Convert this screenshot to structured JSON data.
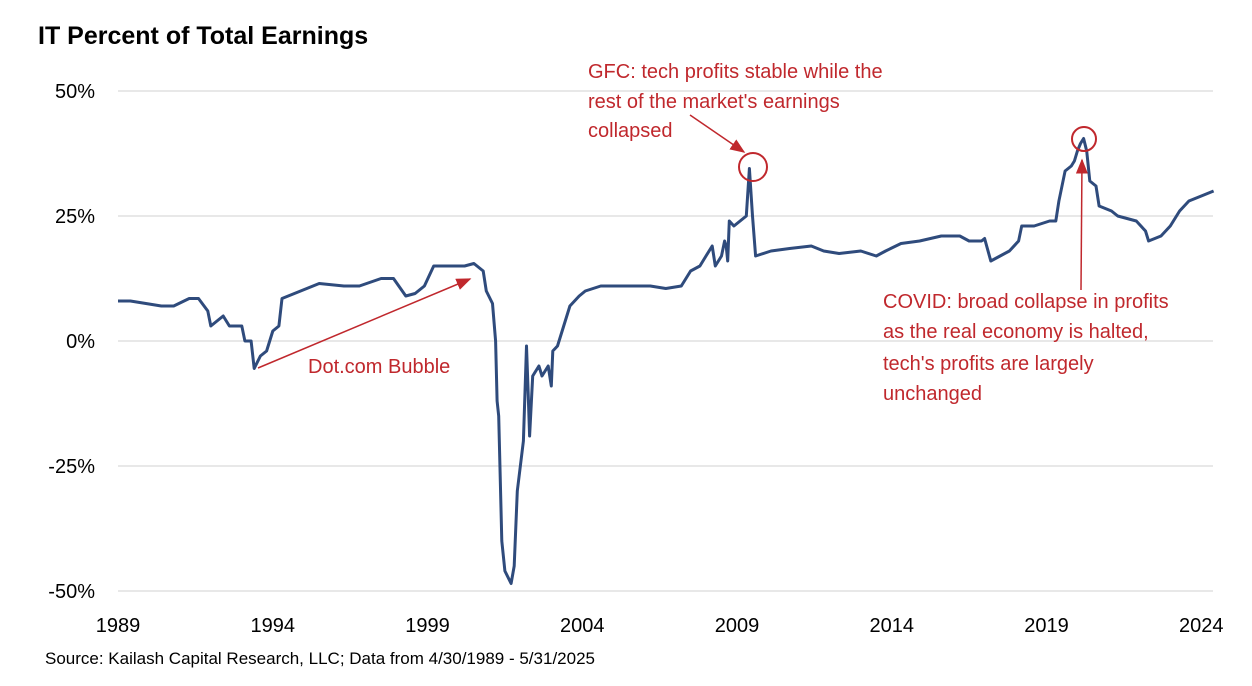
{
  "chart_data": {
    "type": "line",
    "title": "IT Percent of Total Earnings",
    "source": "Source: Kailash Capital Research, LLC; Data from 4/30/1989 - 5/31/2025",
    "annotations": [
      {
        "text": [
          "Dot.com Bubble"
        ]
      },
      {
        "text": [
          "GFC: tech profits stable while the",
          "rest of the market's earnings",
          "collapsed"
        ]
      },
      {
        "text": [
          "COVID: broad collapse in profits",
          "as the real economy is halted,",
          "tech's profits are largely",
          "unchanged"
        ]
      }
    ],
    "x": [
      1989.0,
      1989.4,
      1989.9,
      1990.4,
      1990.8,
      1991.3,
      1991.6,
      1991.9,
      1992.0,
      1992.4,
      1992.6,
      1993.0,
      1993.1,
      1993.3,
      1993.4,
      1993.6,
      1993.8,
      1994.0,
      1994.2,
      1994.3,
      1994.9,
      1995.5,
      1996.3,
      1996.8,
      1997.5,
      1997.9,
      1998.3,
      1998.6,
      1998.9,
      1999.2,
      1999.7,
      2000.2,
      2000.5,
      2000.8,
      2000.9,
      2001.1,
      2001.2,
      2001.25,
      2001.3,
      2001.4,
      2001.5,
      2001.7,
      2001.8,
      2001.9,
      2002.1,
      2002.2,
      2002.25,
      2002.3,
      2002.4,
      2002.6,
      2002.7,
      2002.9,
      2003.0,
      2003.05,
      2003.2,
      2003.4,
      2003.6,
      2003.9,
      2004.1,
      2004.6,
      2005.5,
      2006.2,
      2006.7,
      2007.2,
      2007.5,
      2007.8,
      2008.0,
      2008.2,
      2008.3,
      2008.5,
      2008.6,
      2008.65,
      2008.7,
      2008.75,
      2008.9,
      2009.1,
      2009.3,
      2009.4,
      2009.5,
      2009.6,
      2010.1,
      2010.7,
      2011.4,
      2011.8,
      2012.3,
      2013.0,
      2013.5,
      2013.8,
      2014.3,
      2014.9,
      2015.6,
      2016.2,
      2016.5,
      2016.9,
      2017.0,
      2017.2,
      2017.5,
      2017.8,
      2018.1,
      2018.2,
      2018.6,
      2019.1,
      2019.3,
      2019.4,
      2019.6,
      2019.8,
      2019.9,
      2020.0,
      2020.1,
      2020.2,
      2020.3,
      2020.4,
      2020.6,
      2020.7,
      2021.1,
      2021.3,
      2021.9,
      2022.2,
      2022.3,
      2022.7,
      2023.0,
      2023.3,
      2023.6,
      2024.0,
      2024.4
    ],
    "series": [
      {
        "color": "#2f4b7c",
        "values": [
          8,
          8,
          7.5,
          7,
          7,
          8.5,
          8.5,
          6,
          3,
          5,
          3,
          3,
          0,
          0,
          -5.5,
          -3,
          -2,
          2,
          3,
          8.5,
          10,
          11.5,
          11,
          11,
          12.5,
          12.5,
          9,
          9.5,
          11,
          15,
          15,
          15,
          15.5,
          14,
          10,
          7.5,
          0,
          -12,
          -15,
          -40,
          -46,
          -48.5,
          -45,
          -30,
          -20,
          -1,
          -10,
          -19,
          -7,
          -5,
          -7,
          -5,
          -9,
          -2,
          -1,
          3,
          7,
          9,
          10,
          11,
          11,
          11,
          10.5,
          11,
          14,
          15,
          17,
          19,
          15,
          17,
          20,
          19,
          16,
          24,
          23,
          24,
          25,
          34.5,
          25,
          17,
          18,
          18.5,
          19,
          18,
          17.5,
          18,
          17,
          18,
          19.5,
          20,
          21,
          21,
          20,
          20,
          20.5,
          16,
          17,
          18,
          20,
          23,
          23,
          24,
          24,
          28,
          34,
          35,
          36,
          38,
          39.5,
          40.5,
          38,
          32,
          31,
          27,
          26,
          25,
          24,
          22,
          20,
          21,
          23,
          26,
          28,
          29,
          30
        ]
      }
    ],
    "xlim": [
      1989,
      2024.5
    ],
    "xticks": [
      1989,
      1994,
      1999,
      2004,
      2009,
      2014,
      2019,
      2024
    ],
    "ylim": [
      -50,
      50
    ],
    "yticks": [
      {
        "value": -50,
        "label": "-50%"
      },
      {
        "value": -25,
        "label": "-25%"
      },
      {
        "value": 0,
        "label": "0%"
      },
      {
        "value": 25,
        "label": "25%"
      },
      {
        "value": 50,
        "label": "50%"
      }
    ],
    "grid": true
  }
}
